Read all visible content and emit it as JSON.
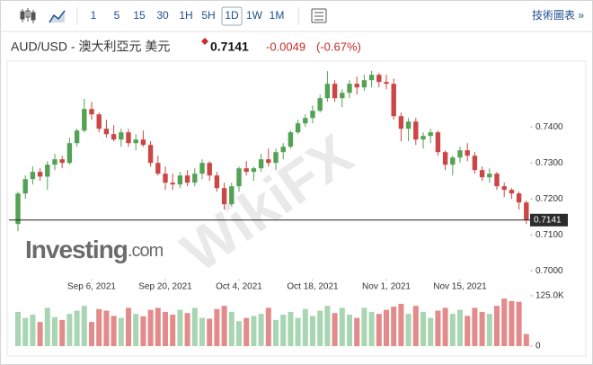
{
  "toolbar": {
    "timeframes": [
      "1",
      "5",
      "15",
      "30",
      "1H",
      "5H",
      "1D",
      "1W",
      "1M"
    ],
    "active": "1D",
    "technical_chart": "技術圖表 »"
  },
  "header": {
    "symbol": "AUD/USD - 澳大利亞元 美元",
    "price": 0.7141,
    "change": -0.0049,
    "change_percent": {
      "value": -0.67,
      "label": "(-0.67%)"
    }
  },
  "watermark": "WikiFX",
  "logo": [
    "Investing",
    ".com"
  ],
  "chart_data": {
    "type": "candlestick",
    "x": [
      "2021-08-23",
      "2021-08-24",
      "2021-08-25",
      "2021-08-26",
      "2021-08-27",
      "2021-08-30",
      "2021-08-31",
      "2021-09-01",
      "2021-09-02",
      "2021-09-03",
      "2021-09-06",
      "2021-09-07",
      "2021-09-08",
      "2021-09-09",
      "2021-09-10",
      "2021-09-13",
      "2021-09-14",
      "2021-09-15",
      "2021-09-16",
      "2021-09-17",
      "2021-09-20",
      "2021-09-21",
      "2021-09-22",
      "2021-09-23",
      "2021-09-24",
      "2021-09-27",
      "2021-09-28",
      "2021-09-29",
      "2021-09-30",
      "2021-10-01",
      "2021-10-04",
      "2021-10-05",
      "2021-10-06",
      "2021-10-07",
      "2021-10-08",
      "2021-10-11",
      "2021-10-12",
      "2021-10-13",
      "2021-10-14",
      "2021-10-15",
      "2021-10-18",
      "2021-10-19",
      "2021-10-20",
      "2021-10-21",
      "2021-10-22",
      "2021-10-25",
      "2021-10-26",
      "2021-10-27",
      "2021-10-28",
      "2021-10-29",
      "2021-11-01",
      "2021-11-02",
      "2021-11-03",
      "2021-11-04",
      "2021-11-05",
      "2021-11-08",
      "2021-11-09",
      "2021-11-10",
      "2021-11-11",
      "2021-11-12",
      "2021-11-15",
      "2021-11-16",
      "2021-11-17",
      "2021-11-18",
      "2021-11-19",
      "2021-11-22",
      "2021-11-23",
      "2021-11-24",
      "2021-11-25",
      "2021-11-26"
    ],
    "open": [
      0.713,
      0.7215,
      0.7255,
      0.7275,
      0.7262,
      0.7295,
      0.731,
      0.73,
      0.7355,
      0.739,
      0.745,
      0.7435,
      0.7395,
      0.738,
      0.7365,
      0.7385,
      0.7355,
      0.7365,
      0.735,
      0.73,
      0.727,
      0.7245,
      0.724,
      0.7265,
      0.7245,
      0.727,
      0.73,
      0.7265,
      0.723,
      0.7185,
      0.7235,
      0.7285,
      0.7275,
      0.7285,
      0.731,
      0.73,
      0.733,
      0.7345,
      0.7385,
      0.741,
      0.7425,
      0.7445,
      0.748,
      0.752,
      0.748,
      0.7495,
      0.752,
      0.751,
      0.753,
      0.7545,
      0.7525,
      0.752,
      0.743,
      0.7395,
      0.7415,
      0.7365,
      0.7375,
      0.7385,
      0.733,
      0.7295,
      0.7315,
      0.7335,
      0.732,
      0.728,
      0.726,
      0.727,
      0.7235,
      0.7225,
      0.7215,
      0.719
    ],
    "high": [
      0.722,
      0.7265,
      0.729,
      0.7285,
      0.7305,
      0.7325,
      0.732,
      0.737,
      0.7395,
      0.7478,
      0.747,
      0.744,
      0.742,
      0.7405,
      0.7395,
      0.7395,
      0.738,
      0.739,
      0.736,
      0.732,
      0.729,
      0.727,
      0.7275,
      0.728,
      0.7285,
      0.731,
      0.7305,
      0.7275,
      0.7245,
      0.7245,
      0.729,
      0.7305,
      0.729,
      0.7325,
      0.734,
      0.734,
      0.7355,
      0.739,
      0.742,
      0.7435,
      0.746,
      0.749,
      0.7555,
      0.753,
      0.7505,
      0.753,
      0.754,
      0.7545,
      0.7556,
      0.755,
      0.7545,
      0.7535,
      0.744,
      0.7425,
      0.7425,
      0.7385,
      0.7395,
      0.739,
      0.7335,
      0.732,
      0.7345,
      0.7355,
      0.733,
      0.729,
      0.7285,
      0.7275,
      0.7245,
      0.723,
      0.722,
      0.7195
    ],
    "low": [
      0.711,
      0.72,
      0.724,
      0.725,
      0.7225,
      0.728,
      0.7285,
      0.7295,
      0.7345,
      0.7385,
      0.742,
      0.7385,
      0.737,
      0.736,
      0.7345,
      0.7345,
      0.7335,
      0.7345,
      0.729,
      0.7265,
      0.7225,
      0.7225,
      0.723,
      0.7235,
      0.7235,
      0.7255,
      0.725,
      0.722,
      0.717,
      0.718,
      0.722,
      0.7265,
      0.725,
      0.7275,
      0.729,
      0.728,
      0.731,
      0.734,
      0.738,
      0.74,
      0.741,
      0.744,
      0.747,
      0.747,
      0.7455,
      0.748,
      0.749,
      0.75,
      0.751,
      0.751,
      0.7505,
      0.742,
      0.736,
      0.736,
      0.735,
      0.734,
      0.7355,
      0.732,
      0.728,
      0.7265,
      0.73,
      0.7305,
      0.727,
      0.725,
      0.7245,
      0.7225,
      0.7205,
      0.72,
      0.717,
      0.713
    ],
    "close": [
      0.7215,
      0.7255,
      0.7275,
      0.7262,
      0.7295,
      0.731,
      0.73,
      0.7355,
      0.739,
      0.745,
      0.7435,
      0.7395,
      0.738,
      0.7365,
      0.7385,
      0.7355,
      0.7365,
      0.735,
      0.73,
      0.727,
      0.7245,
      0.724,
      0.7265,
      0.7245,
      0.727,
      0.73,
      0.7265,
      0.723,
      0.7185,
      0.7235,
      0.7285,
      0.7275,
      0.7285,
      0.731,
      0.73,
      0.733,
      0.7345,
      0.7385,
      0.741,
      0.7425,
      0.7445,
      0.748,
      0.752,
      0.748,
      0.7495,
      0.752,
      0.751,
      0.753,
      0.7545,
      0.7525,
      0.752,
      0.743,
      0.7395,
      0.7415,
      0.7365,
      0.7375,
      0.7385,
      0.733,
      0.7295,
      0.7315,
      0.7335,
      0.732,
      0.728,
      0.726,
      0.727,
      0.7235,
      0.7225,
      0.7215,
      0.719,
      0.7141
    ],
    "volume": [
      85000,
      70000,
      78000,
      60000,
      95000,
      72000,
      65000,
      80000,
      88000,
      100000,
      60000,
      92000,
      88000,
      75000,
      70000,
      95000,
      80000,
      74000,
      90000,
      95000,
      85000,
      78000,
      90000,
      82000,
      95000,
      70000,
      68000,
      92000,
      100000,
      85000,
      62000,
      70000,
      75000,
      80000,
      95000,
      65000,
      78000,
      85000,
      70000,
      92000,
      75000,
      88000,
      100000,
      82000,
      95000,
      78000,
      70000,
      95000,
      85000,
      80000,
      90000,
      98000,
      105000,
      80000,
      100000,
      85000,
      70000,
      88000,
      95000,
      80000,
      90000,
      75000,
      95000,
      85000,
      80000,
      100000,
      118000,
      112000,
      110000,
      30000
    ],
    "up_color": "#53a253",
    "down_color": "#cc4646",
    "volume_up_color": "#a8d5b2",
    "volume_down_color": "#e38a8a",
    "ylim": [
      0.6978,
      0.7578
    ],
    "yticks": [
      {
        "value": 0.7,
        "label": "0.7000"
      },
      {
        "value": 0.71,
        "label": "0.7100"
      },
      {
        "value": 0.72,
        "label": "0.7200"
      },
      {
        "value": 0.73,
        "label": "0.7300"
      },
      {
        "value": 0.74,
        "label": "0.7400"
      }
    ],
    "volume_ylim": [
      0,
      145000
    ],
    "volume_yticks": [
      0,
      {
        "value": 125000,
        "label": "125.0K"
      }
    ],
    "xticks": [
      {
        "value": "2021-09-06",
        "label": "Sep 6, 2021"
      },
      {
        "value": "2021-09-20",
        "label": "Sep 20, 2021"
      },
      {
        "value": "2021-10-04",
        "label": "Oct 4, 2021"
      },
      {
        "value": "2021-10-18",
        "label": "Oct 18, 2021"
      },
      {
        "value": "2021-11-01",
        "label": "Nov 1, 2021"
      },
      {
        "value": "2021-11-15",
        "label": "Nov 15, 2021"
      }
    ],
    "last_price": 0.7141
  }
}
